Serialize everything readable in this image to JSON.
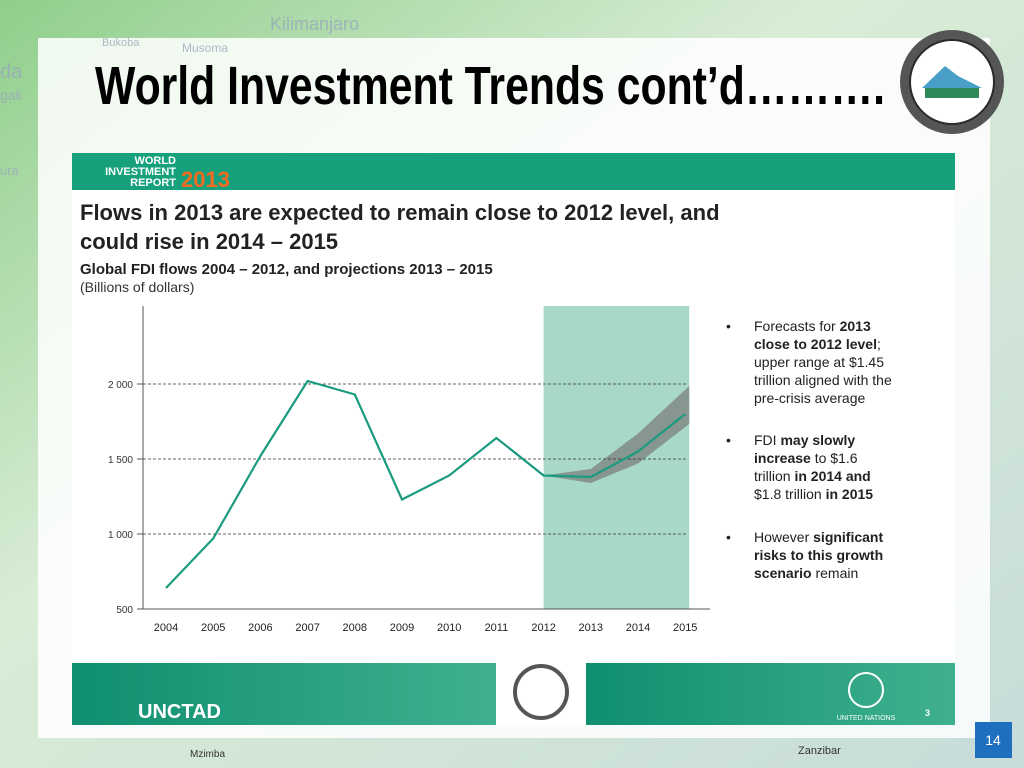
{
  "title": "World Investment Trends cont’d……….",
  "report_label": {
    "line1": "WORLD",
    "line2": "INVESTMENT",
    "line3": "REPORT",
    "year": "2013"
  },
  "heading": {
    "line1": "Flows in 2013 are expected to remain close to 2012 level, and",
    "line2": "could rise in 2014 – 2015"
  },
  "chart_data": {
    "type": "line",
    "title": "Global FDI flows 2004 – 2012, and projections 2013 – 2015",
    "subtitle": "(Billions of dollars)",
    "categories": [
      "2004",
      "2005",
      "2006",
      "2007",
      "2008",
      "2009",
      "2010",
      "2011",
      "2012",
      "2013",
      "2014",
      "2015"
    ],
    "series": [
      {
        "name": "Global FDI flows",
        "color": "#1a9a7f",
        "values": [
          640,
          970,
          1520,
          2020,
          1930,
          1230,
          1390,
          1640,
          1390,
          1380,
          1550,
          1800
        ]
      }
    ],
    "ylim": [
      500,
      2520
    ],
    "yticks": [
      500,
      {
        "value": 1000,
        "label": "1 000"
      },
      {
        "value": 1500,
        "label": "1 500"
      },
      {
        "value": 2000,
        "label": "2 000"
      }
    ],
    "grid": true
  },
  "bullets": [
    {
      "lines": [
        [
          {
            "text": "Forecasts for ",
            "bold": false
          },
          {
            "text": "2013",
            "bold": true
          }
        ],
        [
          {
            "text": "close to 2012 level",
            "bold": true
          },
          {
            "text": ";",
            "bold": false
          }
        ],
        [
          {
            "text": "upper range at $1.45",
            "bold": false
          }
        ],
        [
          {
            "text": "trillion aligned with the",
            "bold": false
          }
        ],
        [
          {
            "text": "pre-crisis average",
            "bold": false
          }
        ]
      ]
    },
    {
      "lines": [
        [
          {
            "text": "FDI ",
            "bold": false
          },
          {
            "text": "may slowly",
            "bold": true
          }
        ],
        [
          {
            "text": "increase",
            "bold": true
          },
          {
            "text": " to $1.6",
            "bold": false
          }
        ],
        [
          {
            "text": "trillion ",
            "bold": false
          },
          {
            "text": "in 2014 and",
            "bold": true
          }
        ],
        [
          {
            "text": "$1.8 trillion ",
            "bold": false
          },
          {
            "text": "in 2015",
            "bold": true
          }
        ]
      ]
    },
    {
      "lines": [
        [
          {
            "text": "However ",
            "bold": false
          },
          {
            "text": "significant",
            "bold": true
          }
        ],
        [
          {
            "text": "risks to this growth",
            "bold": true
          }
        ],
        [
          {
            "text": "scenario",
            "bold": true
          },
          {
            "text": " remain",
            "bold": false
          }
        ]
      ]
    }
  ],
  "bullet_symbol": "•",
  "footer": {
    "unctad": "UNCTAD",
    "un": "UNITED NATIONS",
    "inner_page": "3",
    "page_number": "14",
    "left_place": "Mzimba",
    "right_place": "Zanzibar"
  },
  "map_labels": [
    "Kilimanjaro",
    "Bukoba",
    "Musoma",
    "da",
    "gali",
    "ura"
  ]
}
